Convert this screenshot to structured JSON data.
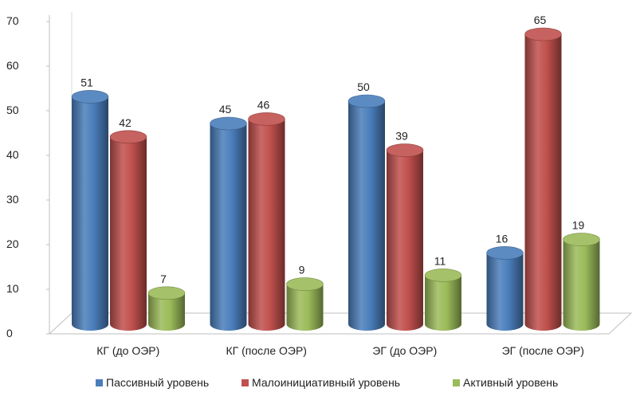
{
  "chart_data": {
    "type": "bar",
    "categories": [
      "КГ (до ОЭР)",
      "КГ (после ОЭР)",
      "ЭГ (до ОЭР)",
      "ЭГ (после ОЭР)"
    ],
    "series": [
      {
        "name": "Пассивный уровень",
        "values": [
          51,
          45,
          50,
          16
        ],
        "color": "#4a7ebb"
      },
      {
        "name": "Малоинициативный уровень",
        "values": [
          42,
          46,
          39,
          65
        ],
        "color": "#c0504d"
      },
      {
        "name": "Активный  уровень",
        "values": [
          7,
          9,
          11,
          19
        ],
        "color": "#9bbb59"
      }
    ],
    "ylim": [
      0,
      70
    ],
    "yticks": [
      "0",
      "10",
      "20",
      "30",
      "40",
      "50",
      "60",
      "70"
    ],
    "grid": false,
    "legend_position": "bottom",
    "style": "3d-cylinder"
  }
}
